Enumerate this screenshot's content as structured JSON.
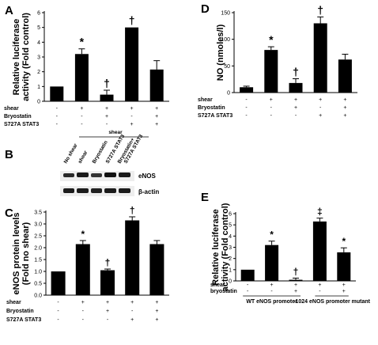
{
  "chart_data": [
    {
      "panel": "A",
      "type": "bar",
      "ylabel_line1": "Relative luciferase",
      "ylabel_line2": "activity (Fold control)",
      "ylim": [
        0,
        6
      ],
      "ytick_labels": [
        "0",
        "1",
        "2",
        "3",
        "4",
        "5",
        "6"
      ],
      "values": [
        1.0,
        3.2,
        0.45,
        5.0,
        2.15
      ],
      "errors": [
        0.0,
        0.35,
        0.3,
        0.0,
        0.6
      ],
      "annotations": [
        "",
        "*",
        "†",
        "†",
        ""
      ],
      "conditions": [
        {
          "label": "shear",
          "symbols": [
            "-",
            "+",
            "+",
            "+",
            "+"
          ]
        },
        {
          "label": "Bryostatin",
          "symbols": [
            "-",
            "-",
            "+",
            "-",
            "+"
          ]
        },
        {
          "label": "S727A STAT3",
          "symbols": [
            "-",
            "-",
            "-",
            "+",
            "+"
          ]
        }
      ]
    },
    {
      "panel": "D",
      "type": "bar",
      "ylabel_line1": "NO (nmoles/l)",
      "ylim": [
        0,
        150
      ],
      "ytick_labels": [
        "0",
        "50",
        "100",
        "150"
      ],
      "values": [
        10,
        80,
        18,
        130,
        62
      ],
      "errors": [
        2,
        6,
        8,
        12,
        10
      ],
      "annotations": [
        "",
        "*",
        "†",
        "†",
        ""
      ],
      "conditions": [
        {
          "label": "shear",
          "symbols": [
            "-",
            "+",
            "+",
            "+",
            "+"
          ]
        },
        {
          "label": "Bryostatin",
          "symbols": [
            "-",
            "-",
            "+",
            "-",
            "+"
          ]
        },
        {
          "label": "S727A STAT3",
          "symbols": [
            "-",
            "-",
            "-",
            "+",
            "+"
          ]
        }
      ]
    },
    {
      "panel": "C",
      "type": "bar",
      "ylabel_line1": "eNOS protein levels",
      "ylabel_line2": "(Fold no shear)",
      "ylim": [
        0,
        3.5
      ],
      "ytick_labels": [
        "0.0",
        "0.5",
        "1.0",
        "1.5",
        "2.0",
        "2.5",
        "3.0",
        "3.5"
      ],
      "values": [
        1.0,
        2.15,
        1.05,
        3.15,
        2.15
      ],
      "errors": [
        0.0,
        0.15,
        0.05,
        0.15,
        0.15
      ],
      "annotations": [
        "",
        "*",
        "†",
        "†",
        ""
      ],
      "conditions": [
        {
          "label": "shear",
          "symbols": [
            "-",
            "+",
            "+",
            "+",
            "+"
          ]
        },
        {
          "label": "Bryostatin",
          "symbols": [
            "-",
            "-",
            "+",
            "-",
            "+"
          ]
        },
        {
          "label": "S727A STAT3",
          "symbols": [
            "-",
            "-",
            "-",
            "+",
            "+"
          ]
        }
      ]
    },
    {
      "panel": "E",
      "type": "bar",
      "ylabel_line1": "Relative luciferase",
      "ylabel_line2": "activity (Fold control)",
      "ylim": [
        0,
        6
      ],
      "ytick_labels": [
        "0",
        "1",
        "2",
        "3",
        "4",
        "5",
        "6"
      ],
      "values": [
        1.0,
        3.2,
        0.1,
        5.3,
        2.55
      ],
      "errors": [
        0.0,
        0.35,
        0.15,
        0.3,
        0.4
      ],
      "annotations": [
        "",
        "*",
        "†",
        "‡",
        "*"
      ],
      "conditions": [
        {
          "label": "shear",
          "symbols": [
            "-",
            "+",
            "+",
            "+",
            "+"
          ]
        },
        {
          "label": "bryostatin",
          "symbols": [
            "-",
            "-",
            "+",
            "-",
            "+"
          ]
        }
      ],
      "groups": [
        "WT eNOS promoter",
        "-1024 eNOS promoter mutant"
      ]
    }
  ],
  "blot": {
    "panel": "B",
    "header": "shear",
    "lanes": [
      "No shear",
      "shear",
      "Bryostatin",
      "S727A STAT3",
      "Bryostatin+\nS727A STAT3"
    ],
    "rows": [
      "eNOS",
      "β-actin"
    ]
  }
}
